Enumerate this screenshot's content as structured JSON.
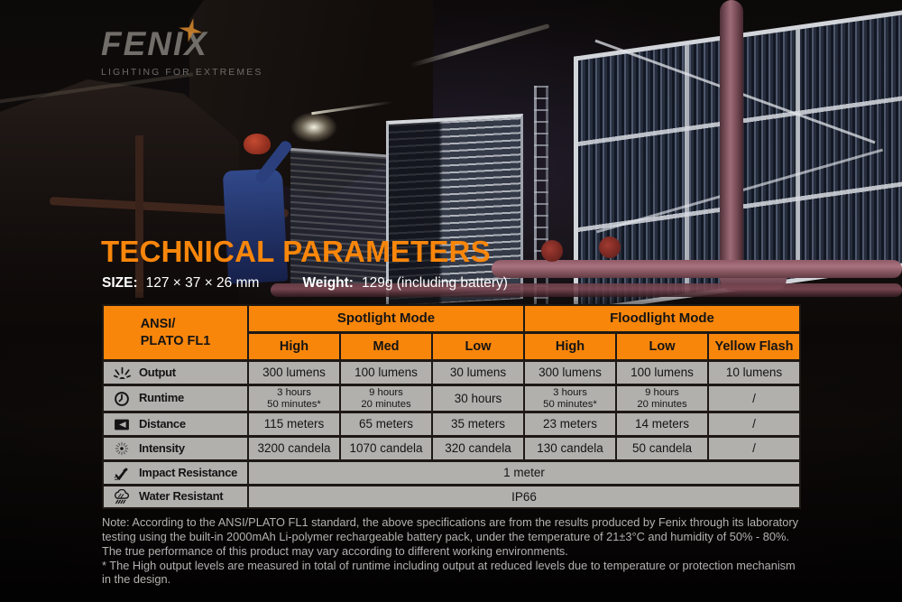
{
  "colors": {
    "accent_orange": "#F8860B",
    "table_gray": "#B2B0AD",
    "header_text": "#141414",
    "note_gray": "#B4B2B0",
    "logo_star_orange": "#C9812C",
    "pipe_pink": "#9D6B77",
    "worker_blue": "#24356B",
    "helmet_red": "#A63426"
  },
  "logo": {
    "brand": "FENIX",
    "tagline": "LIGHTING FOR EXTREMES",
    "star_icon": "four-point-star"
  },
  "header": {
    "title": "TECHNICAL PARAMETERS",
    "size_label": "SIZE:",
    "size_value": "127 × 37 × 26 mm",
    "weight_label": "Weight:",
    "weight_value": "129g (including battery)"
  },
  "table": {
    "corner": "ANSI/\nPLATO  FL1",
    "groups": [
      {
        "label": "Spotlight Mode"
      },
      {
        "label": "Floodlight Mode"
      }
    ],
    "columns": [
      "High",
      "Med",
      "Low",
      "High",
      "Low",
      "Yellow Flash"
    ],
    "rows": [
      {
        "icon": "output-icon",
        "label": "Output",
        "cells": [
          "300 lumens",
          "100 lumens",
          "30 lumens",
          "300 lumens",
          "100 lumens",
          "10 lumens"
        ]
      },
      {
        "icon": "runtime-icon",
        "label": "Runtime",
        "cells": [
          "3 hours\n50 minutes*",
          "9 hours\n20 minutes",
          "30 hours",
          "3 hours\n50 minutes*",
          "9 hours\n20 minutes",
          "/"
        ]
      },
      {
        "icon": "distance-icon",
        "label": "Distance",
        "cells": [
          "115 meters",
          "65 meters",
          "35 meters",
          "23 meters",
          "14 meters",
          "/"
        ]
      },
      {
        "icon": "intensity-icon",
        "label": "Intensity",
        "cells": [
          "3200 candela",
          "1070 candela",
          "320 candela",
          "130 candela",
          "50 candela",
          "/"
        ]
      },
      {
        "icon": "impact-icon",
        "label": "Impact Resistance",
        "span_value": "1 meter"
      },
      {
        "icon": "water-icon",
        "label": "Water Resistant",
        "span_value": "IP66"
      }
    ]
  },
  "note": {
    "paragraph": "Note: According to the ANSI/PLATO FL1 standard, the above specifications are from the results produced by Fenix through its laboratory testing using the built-in 2000mAh Li-polymer rechargeable battery pack, under the temperature of 21±3°C and humidity of 50% - 80%. The true performance of this product may vary according to different working environments.",
    "footnote": "* The High output levels are measured in total of runtime including output at reduced levels due to temperature or protection mechanism in the design."
  }
}
